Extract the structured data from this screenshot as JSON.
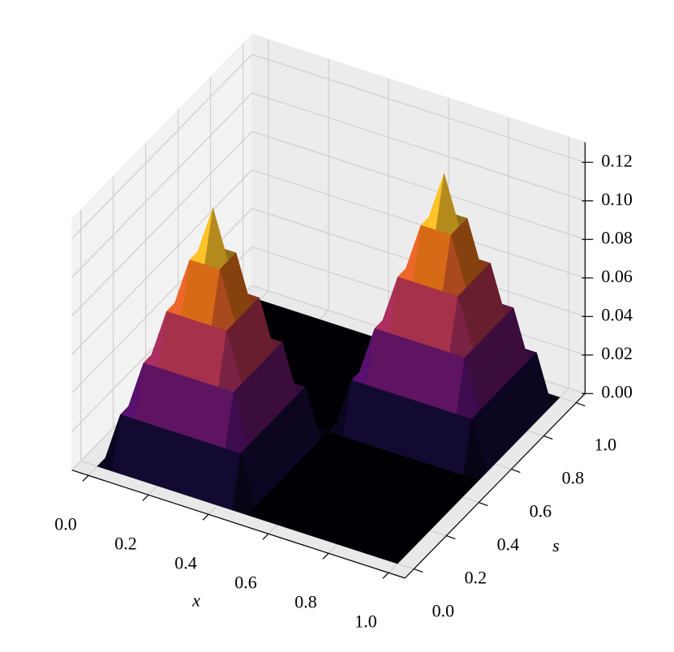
{
  "chart_data": {
    "type": "surface",
    "x_label": "x",
    "y_label": "s",
    "colormap": "inferno",
    "x": [
      0,
      0.05,
      0.1,
      0.15,
      0.2,
      0.25,
      0.3,
      0.35,
      0.4,
      0.45,
      0.5,
      0.55,
      0.6,
      0.65,
      0.7,
      0.75,
      0.8,
      0.85,
      0.9,
      0.95,
      1
    ],
    "y": [
      0,
      0.05,
      0.1,
      0.15,
      0.2,
      0.25,
      0.3,
      0.35,
      0.4,
      0.45,
      0.5,
      0.55,
      0.6,
      0.65,
      0.7,
      0.75,
      0.8,
      0.85,
      0.9,
      0.95,
      1
    ],
    "z": [
      [
        0,
        0,
        0,
        0,
        0,
        0,
        0,
        0,
        0,
        0,
        0,
        0,
        0,
        0,
        0,
        0,
        0,
        0,
        0,
        0,
        0
      ],
      [
        0,
        0.025,
        0.025,
        0.025,
        0.025,
        0.025,
        0.025,
        0.025,
        0.025,
        0.025,
        0,
        0,
        0,
        0,
        0,
        0,
        0,
        0,
        0,
        0,
        0
      ],
      [
        0,
        0.025,
        0.05,
        0.05,
        0.05,
        0.05,
        0.05,
        0.05,
        0.05,
        0.025,
        0,
        0,
        0,
        0,
        0,
        0,
        0,
        0,
        0,
        0,
        0
      ],
      [
        0,
        0.025,
        0.05,
        0.075,
        0.075,
        0.075,
        0.075,
        0.075,
        0.05,
        0.025,
        0,
        0,
        0,
        0,
        0,
        0,
        0,
        0,
        0,
        0,
        0
      ],
      [
        0,
        0.025,
        0.05,
        0.075,
        0.1,
        0.1,
        0.1,
        0.075,
        0.05,
        0.025,
        0,
        0,
        0,
        0,
        0,
        0,
        0,
        0,
        0,
        0,
        0
      ],
      [
        0,
        0.025,
        0.05,
        0.075,
        0.1,
        0.125,
        0.1,
        0.075,
        0.05,
        0.025,
        0,
        0,
        0,
        0,
        0,
        0,
        0,
        0,
        0,
        0,
        0
      ],
      [
        0,
        0.025,
        0.05,
        0.075,
        0.1,
        0.1,
        0.1,
        0.075,
        0.05,
        0.025,
        0,
        0,
        0,
        0,
        0,
        0,
        0,
        0,
        0,
        0,
        0
      ],
      [
        0,
        0.025,
        0.05,
        0.075,
        0.075,
        0.075,
        0.075,
        0.075,
        0.05,
        0.025,
        0,
        0,
        0,
        0,
        0,
        0,
        0,
        0,
        0,
        0,
        0
      ],
      [
        0,
        0.025,
        0.05,
        0.05,
        0.05,
        0.05,
        0.05,
        0.05,
        0.05,
        0.025,
        0,
        0,
        0,
        0,
        0,
        0,
        0,
        0,
        0,
        0,
        0
      ],
      [
        0,
        0.025,
        0.025,
        0.025,
        0.025,
        0.025,
        0.025,
        0.025,
        0.025,
        0.025,
        0,
        0,
        0,
        0,
        0,
        0,
        0,
        0,
        0,
        0,
        0
      ],
      [
        0,
        0,
        0,
        0,
        0,
        0,
        0,
        0,
        0,
        0,
        0,
        0,
        0,
        0,
        0,
        0,
        0,
        0,
        0,
        0,
        0
      ],
      [
        0,
        0,
        0,
        0,
        0,
        0,
        0,
        0,
        0,
        0,
        0,
        0.025,
        0.025,
        0.025,
        0.025,
        0.025,
        0.025,
        0.025,
        0.025,
        0.025,
        0
      ],
      [
        0,
        0,
        0,
        0,
        0,
        0,
        0,
        0,
        0,
        0,
        0,
        0.025,
        0.05,
        0.05,
        0.05,
        0.05,
        0.05,
        0.05,
        0.05,
        0.025,
        0
      ],
      [
        0,
        0,
        0,
        0,
        0,
        0,
        0,
        0,
        0,
        0,
        0,
        0.025,
        0.05,
        0.075,
        0.075,
        0.075,
        0.075,
        0.075,
        0.05,
        0.025,
        0
      ],
      [
        0,
        0,
        0,
        0,
        0,
        0,
        0,
        0,
        0,
        0,
        0,
        0.025,
        0.05,
        0.075,
        0.1,
        0.1,
        0.1,
        0.075,
        0.05,
        0.025,
        0
      ],
      [
        0,
        0,
        0,
        0,
        0,
        0,
        0,
        0,
        0,
        0,
        0,
        0.025,
        0.05,
        0.075,
        0.1,
        0.125,
        0.1,
        0.075,
        0.05,
        0.025,
        0
      ],
      [
        0,
        0,
        0,
        0,
        0,
        0,
        0,
        0,
        0,
        0,
        0,
        0.025,
        0.05,
        0.075,
        0.1,
        0.1,
        0.1,
        0.075,
        0.05,
        0.025,
        0
      ],
      [
        0,
        0,
        0,
        0,
        0,
        0,
        0,
        0,
        0,
        0,
        0,
        0.025,
        0.05,
        0.075,
        0.075,
        0.075,
        0.075,
        0.075,
        0.05,
        0.025,
        0
      ],
      [
        0,
        0,
        0,
        0,
        0,
        0,
        0,
        0,
        0,
        0,
        0,
        0.025,
        0.05,
        0.05,
        0.05,
        0.05,
        0.05,
        0.05,
        0.05,
        0.025,
        0
      ],
      [
        0,
        0,
        0,
        0,
        0,
        0,
        0,
        0,
        0,
        0,
        0,
        0.025,
        0.025,
        0.025,
        0.025,
        0.025,
        0.025,
        0.025,
        0.025,
        0.025,
        0
      ],
      [
        0,
        0,
        0,
        0,
        0,
        0,
        0,
        0,
        0,
        0,
        0,
        0,
        0,
        0,
        0,
        0,
        0,
        0,
        0,
        0,
        0
      ]
    ],
    "xlim": [
      0,
      1
    ],
    "ylim": [
      0,
      1
    ],
    "zlim": [
      0,
      0.125
    ],
    "xticks": [
      {
        "value": 0,
        "label": "0.0"
      },
      0.2,
      0.4,
      0.6,
      0.8,
      {
        "value": 1,
        "label": "1.0"
      }
    ],
    "yticks": [
      {
        "value": 0,
        "label": "0.0"
      },
      0.2,
      0.4,
      0.6,
      0.8,
      {
        "value": 1,
        "label": "1.0"
      }
    ],
    "zticks": [
      {
        "value": 0,
        "label": "0.00"
      },
      0.02,
      0.04,
      0.06,
      0.08,
      {
        "value": 0.1,
        "label": "0.10"
      },
      0.12
    ],
    "grid": true
  }
}
